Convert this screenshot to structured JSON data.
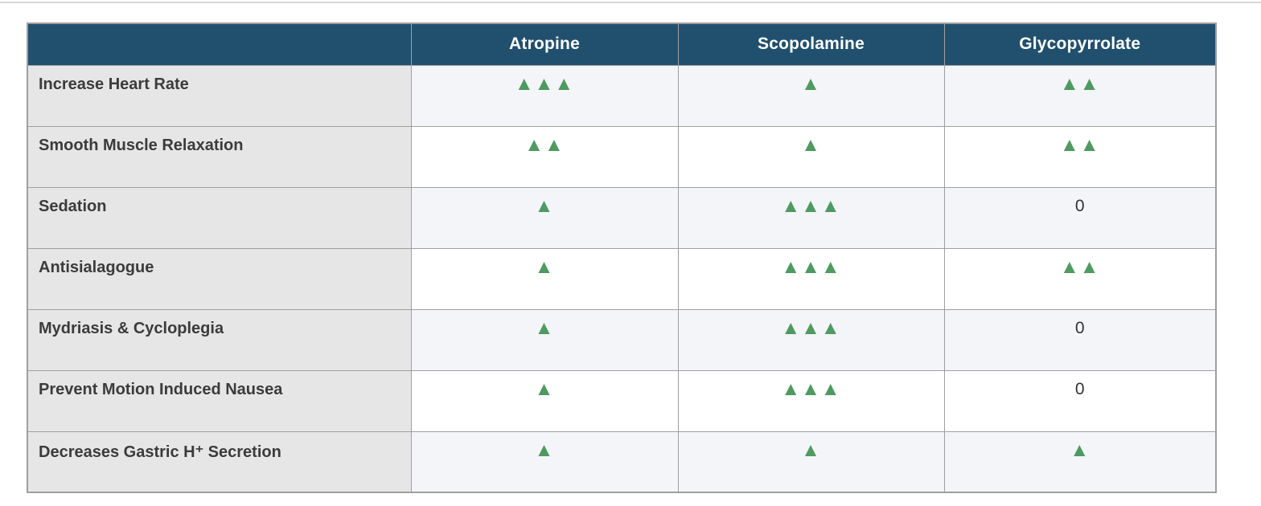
{
  "page": {
    "background": "#ffffff",
    "top_divider_color": "#d7d7d7"
  },
  "table": {
    "header": {
      "bg": "#21506e",
      "text_color": "#ffffff",
      "columns": [
        "",
        "Atropine",
        "Scopolamine",
        "Glycopyrrolate"
      ]
    },
    "style": {
      "label_col_bg": "#e6e6e6",
      "label_text_color": "#3b3b3b",
      "stripe_bg": "#f3f5f9",
      "plain_bg": "#ffffff",
      "border_color": "#9f9f9f"
    },
    "symbols": {
      "triangle_icon": "▲",
      "triangle_color": "#4e9a60",
      "zero": "0"
    },
    "drug_keys": [
      "atropine",
      "scopolamine",
      "glycopyrrolate"
    ],
    "rows": [
      {
        "label": "Increase Heart Rate",
        "atropine": 3,
        "scopolamine": 1,
        "glycopyrrolate": 2
      },
      {
        "label": "Smooth Muscle Relaxation",
        "atropine": 2,
        "scopolamine": 1,
        "glycopyrrolate": 2
      },
      {
        "label": "Sedation",
        "atropine": 1,
        "scopolamine": 3,
        "glycopyrrolate": 0
      },
      {
        "label": "Antisialagogue",
        "atropine": 1,
        "scopolamine": 3,
        "glycopyrrolate": 2
      },
      {
        "label": "Mydriasis & Cycloplegia",
        "atropine": 1,
        "scopolamine": 3,
        "glycopyrrolate": 0
      },
      {
        "label": "Prevent Motion Induced Nausea",
        "atropine": 1,
        "scopolamine": 3,
        "glycopyrrolate": 0
      },
      {
        "label": "Decreases Gastric H⁺ Secretion",
        "atropine": 1,
        "scopolamine": 1,
        "glycopyrrolate": 1
      }
    ]
  }
}
